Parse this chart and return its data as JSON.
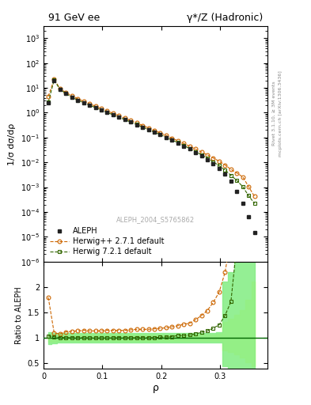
{
  "title_left": "91 GeV ee",
  "title_right": "γ*/Z (Hadronic)",
  "xlabel": "ρ",
  "ylabel_main": "1/σ dσ/dρ",
  "ylabel_ratio": "Ratio to ALEPH",
  "right_label": "Rivet 3.1.10, ≥ 3M events",
  "right_label2": "mcplots.cern.ch [arXiv:1306.3436]",
  "watermark": "ALEPH_2004_S5765862",
  "legend": [
    "ALEPH",
    "Herwig++ 2.7.1 default",
    "Herwig 7.2.1 default"
  ],
  "aleph_color": "#222222",
  "herwig271_color": "#cc6600",
  "herwig721_color": "#336600",
  "herwig271_band_color": "#ffff66",
  "herwig721_band_color": "#88ee88",
  "rho_aleph": [
    0.008,
    0.018,
    0.028,
    0.038,
    0.048,
    0.058,
    0.068,
    0.078,
    0.088,
    0.098,
    0.108,
    0.118,
    0.128,
    0.138,
    0.148,
    0.158,
    0.168,
    0.178,
    0.188,
    0.198,
    0.208,
    0.218,
    0.228,
    0.238,
    0.248,
    0.258,
    0.268,
    0.278,
    0.288,
    0.298,
    0.308,
    0.318,
    0.328,
    0.338,
    0.348,
    0.358
  ],
  "dsigma_aleph": [
    2.5,
    20.0,
    8.5,
    5.8,
    4.2,
    3.2,
    2.5,
    2.0,
    1.6,
    1.28,
    1.02,
    0.82,
    0.65,
    0.52,
    0.415,
    0.33,
    0.263,
    0.208,
    0.164,
    0.128,
    0.1,
    0.077,
    0.059,
    0.045,
    0.034,
    0.025,
    0.018,
    0.013,
    0.0088,
    0.0058,
    0.0034,
    0.00175,
    0.00065,
    0.00022,
    6.5e-05,
    1.5e-05
  ],
  "rho_h271": [
    0.008,
    0.018,
    0.028,
    0.038,
    0.048,
    0.058,
    0.068,
    0.078,
    0.088,
    0.098,
    0.108,
    0.118,
    0.128,
    0.138,
    0.148,
    0.158,
    0.168,
    0.178,
    0.188,
    0.198,
    0.208,
    0.218,
    0.228,
    0.238,
    0.248,
    0.258,
    0.268,
    0.278,
    0.288,
    0.298,
    0.308,
    0.318,
    0.328,
    0.338,
    0.348,
    0.358
  ],
  "dsigma_h271": [
    4.5,
    22.0,
    9.2,
    6.5,
    4.75,
    3.65,
    2.87,
    2.28,
    1.83,
    1.46,
    1.17,
    0.94,
    0.75,
    0.6,
    0.48,
    0.385,
    0.307,
    0.244,
    0.193,
    0.152,
    0.12,
    0.094,
    0.073,
    0.057,
    0.044,
    0.034,
    0.026,
    0.02,
    0.015,
    0.011,
    0.0078,
    0.0052,
    0.0037,
    0.0026,
    0.00105,
    0.00042
  ],
  "rho_h721": [
    0.008,
    0.018,
    0.028,
    0.038,
    0.048,
    0.058,
    0.068,
    0.078,
    0.088,
    0.098,
    0.108,
    0.118,
    0.128,
    0.138,
    0.148,
    0.158,
    0.168,
    0.178,
    0.188,
    0.198,
    0.208,
    0.218,
    0.228,
    0.238,
    0.248,
    0.258,
    0.268,
    0.278,
    0.288,
    0.298,
    0.308,
    0.318,
    0.328,
    0.338,
    0.348,
    0.358
  ],
  "dsigma_h721": [
    2.6,
    20.5,
    8.6,
    5.85,
    4.22,
    3.21,
    2.51,
    2.0,
    1.6,
    1.28,
    1.02,
    0.82,
    0.655,
    0.522,
    0.416,
    0.332,
    0.264,
    0.209,
    0.165,
    0.13,
    0.102,
    0.079,
    0.062,
    0.047,
    0.036,
    0.027,
    0.02,
    0.0148,
    0.0105,
    0.0073,
    0.0049,
    0.003,
    0.00185,
    0.00105,
    0.00045,
    0.00022
  ],
  "ratio_h271": [
    1.8,
    1.1,
    1.08,
    1.12,
    1.13,
    1.14,
    1.15,
    1.14,
    1.14,
    1.14,
    1.15,
    1.15,
    1.15,
    1.15,
    1.16,
    1.17,
    1.17,
    1.17,
    1.18,
    1.19,
    1.2,
    1.22,
    1.24,
    1.27,
    1.29,
    1.36,
    1.44,
    1.54,
    1.7,
    1.9,
    2.29,
    2.97,
    5.7,
    11.8,
    16.2,
    28.0
  ],
  "ratio_h721": [
    1.04,
    1.025,
    1.01,
    1.008,
    1.005,
    1.003,
    1.004,
    1.0,
    1.0,
    1.0,
    1.0,
    1.0,
    1.007,
    1.004,
    1.002,
    1.006,
    1.004,
    1.005,
    1.006,
    1.016,
    1.02,
    1.026,
    1.051,
    1.044,
    1.059,
    1.08,
    1.111,
    1.138,
    1.193,
    1.259,
    1.441,
    1.714,
    2.846,
    4.773,
    6.923,
    14.67
  ],
  "band_271_lo": [
    0.93,
    0.93,
    0.94,
    0.94,
    0.94,
    0.94,
    0.94,
    0.94,
    0.94,
    0.94,
    0.94,
    0.94,
    0.94,
    0.94,
    0.94,
    0.94,
    0.94,
    0.94,
    0.94,
    0.94,
    0.94,
    0.94,
    0.94,
    0.94,
    0.94,
    0.94,
    0.94,
    0.94,
    0.94,
    0.94,
    0.75,
    0.72,
    0.68,
    0.62,
    0.52,
    0.45
  ],
  "band_271_hi": [
    1.07,
    1.07,
    1.06,
    1.06,
    1.06,
    1.06,
    1.06,
    1.06,
    1.06,
    1.06,
    1.06,
    1.06,
    1.06,
    1.06,
    1.06,
    1.06,
    1.06,
    1.06,
    1.06,
    1.06,
    1.06,
    1.06,
    1.06,
    1.06,
    1.06,
    1.06,
    1.06,
    1.06,
    1.07,
    1.08,
    1.32,
    1.38,
    1.45,
    1.55,
    1.75,
    2.1
  ],
  "band_721_lo": [
    0.88,
    0.9,
    0.91,
    0.91,
    0.91,
    0.91,
    0.91,
    0.91,
    0.91,
    0.91,
    0.91,
    0.91,
    0.91,
    0.91,
    0.91,
    0.91,
    0.91,
    0.91,
    0.91,
    0.91,
    0.91,
    0.91,
    0.91,
    0.91,
    0.91,
    0.91,
    0.91,
    0.91,
    0.91,
    0.91,
    0.45,
    0.38,
    0.32,
    0.28,
    0.22,
    0.18
  ],
  "band_721_hi": [
    1.12,
    1.1,
    1.09,
    1.09,
    1.09,
    1.09,
    1.09,
    1.09,
    1.09,
    1.09,
    1.09,
    1.09,
    1.09,
    1.09,
    1.09,
    1.09,
    1.09,
    1.09,
    1.09,
    1.09,
    1.09,
    1.09,
    1.09,
    1.09,
    1.09,
    1.09,
    1.09,
    1.09,
    1.1,
    1.11,
    2.1,
    2.3,
    2.5,
    2.6,
    2.7,
    2.8
  ],
  "ylim_main": [
    1e-06,
    3000
  ],
  "ylim_ratio": [
    0.4,
    2.5
  ],
  "xlim": [
    0.0,
    0.38
  ]
}
